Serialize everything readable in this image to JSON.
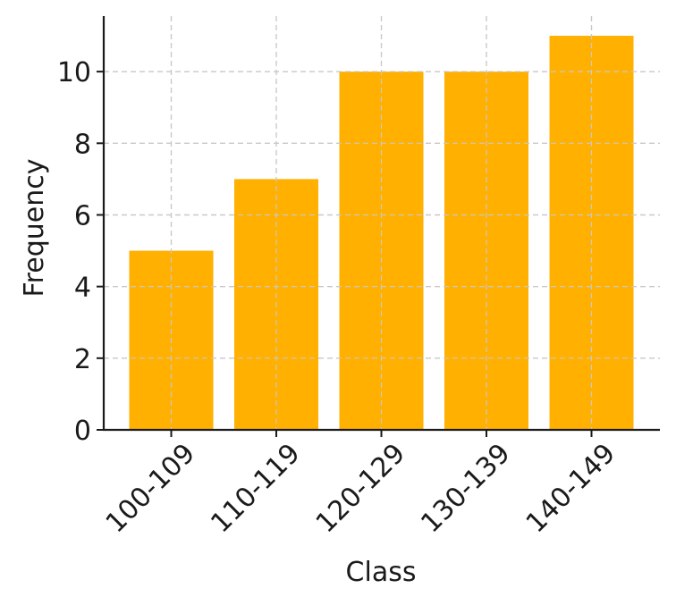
{
  "chart_data": {
    "type": "bar",
    "title": "",
    "xlabel": "Class",
    "ylabel": "Frequency",
    "categories": [
      "100-109",
      "110-119",
      "120-129",
      "130-139",
      "140-149"
    ],
    "values": [
      5,
      7,
      10,
      10,
      11
    ],
    "ylim": [
      0,
      11.55
    ],
    "yticks": [
      0,
      2,
      4,
      6,
      8,
      10
    ],
    "grid": true,
    "bar_color": "#FFB000",
    "legend": "none"
  }
}
